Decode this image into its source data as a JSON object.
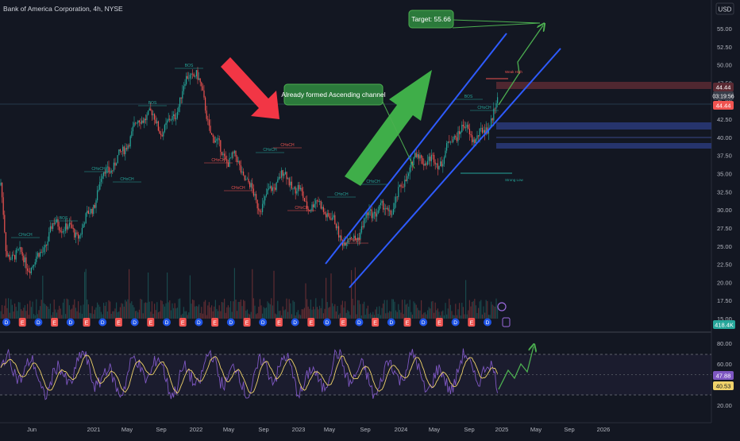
{
  "header": {
    "symbol_title": "Bank of America Corporation, 4h, NYSE",
    "currency": "USD"
  },
  "price_axis": {
    "ticks": [
      "55.00",
      "52.50",
      "50.00",
      "47.50",
      "45.00",
      "42.50",
      "40.00",
      "37.50",
      "35.00",
      "32.50",
      "30.00",
      "27.50",
      "25.00",
      "22.50",
      "20.00",
      "17.50",
      "15.00"
    ],
    "last_price_label": "44.44",
    "countdown_label": "03:19:56",
    "ask_label": "44.44",
    "volume_label": "418.4K"
  },
  "rsi_axis": {
    "ticks": [
      "80.00",
      "60.00",
      "40.00",
      "20.00"
    ],
    "rsi_label": "47.88",
    "ma_label": "40.53"
  },
  "time_axis": {
    "labels": [
      "Jun",
      "2021",
      "May",
      "Sep",
      "2022",
      "May",
      "Sep",
      "2023",
      "May",
      "Sep",
      "2024",
      "May",
      "Sep",
      "2025",
      "May",
      "Sep",
      "2026"
    ]
  },
  "annotations": {
    "target": "Target: 55.66",
    "channel": "Already formed Ascending channel",
    "bos": "BOS",
    "choch": "CHoCH",
    "weak_high": "Weak High",
    "strong_low": "Strong Low"
  },
  "colors": {
    "background": "#131722",
    "bull": "#26a69a",
    "bear": "#ef5350",
    "channel": "#2e5bff",
    "arrow_green": "#3fae49",
    "arrow_red": "#f23645",
    "target_box": "#2b7a3b",
    "rsi_line": "#7e57c2",
    "rsi_ma": "#f0d36a"
  },
  "chart_data": {
    "type": "candlestick",
    "title": "Bank of America Corporation, 4h, NYSE",
    "y_range": [
      15.0,
      56.5
    ],
    "x_labels": [
      "Jun",
      "2021",
      "May",
      "Sep",
      "2022",
      "May",
      "Sep",
      "2023",
      "May",
      "Sep",
      "2024",
      "May",
      "Sep",
      "2025",
      "May",
      "Sep",
      "2026"
    ],
    "price_path_approx": [
      {
        "x": "Jun 2020",
        "close": 24
      },
      {
        "x": "2021",
        "close": 30
      },
      {
        "x": "May 2021",
        "close": 41
      },
      {
        "x": "Sep 2021",
        "close": 42
      },
      {
        "x": "2022",
        "close": 48
      },
      {
        "x": "May 2022",
        "close": 36
      },
      {
        "x": "Sep 2022",
        "close": 32
      },
      {
        "x": "2023",
        "close": 34
      },
      {
        "x": "May 2023",
        "close": 27.5
      },
      {
        "x": "Sep 2023",
        "close": 27
      },
      {
        "x": "2024",
        "close": 33.5
      },
      {
        "x": "May 2024",
        "close": 38
      },
      {
        "x": "Sep 2024",
        "close": 40
      },
      {
        "x": "2025",
        "close": 44.44
      }
    ],
    "last_price": 44.44,
    "target": 55.66,
    "rsi": {
      "range": [
        10,
        90
      ],
      "levels": [
        30,
        70
      ],
      "last_value": 47.88,
      "ma_last": 40.53
    }
  }
}
